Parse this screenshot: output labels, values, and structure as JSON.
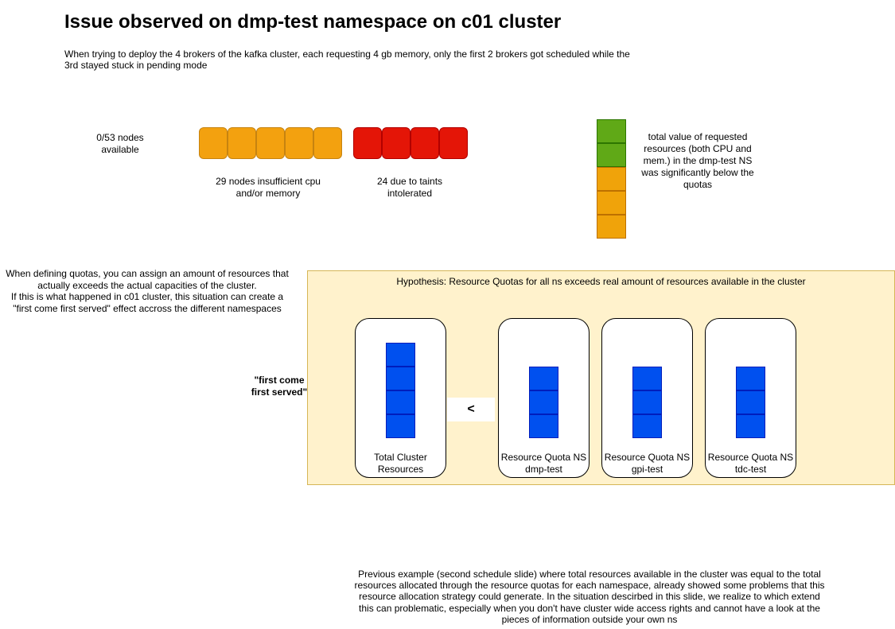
{
  "title": "Issue observed on dmp-test namespace on c01 cluster",
  "subtitle": "When trying to deploy the 4  brokers of the kafka cluster, each requesting 4 gb memory, only the first 2 brokers got scheduled while the 3rd stayed stuck in pending mode",
  "nodes": {
    "available_label": "0/53 nodes available",
    "insufficient_label": "29  nodes insufficient cpu and/or memory",
    "taints_label": "24 due to taints intolerated",
    "insufficient_count": 5,
    "taints_count": 4
  },
  "resource_stack": {
    "cells": [
      "green",
      "green",
      "orange",
      "orange",
      "orange"
    ],
    "label": "total value of requested resources (both CPU and mem.) in the dmp-test NS was significantly below the quotas"
  },
  "quota_note": "When defining quotas, you can assign an amount of resources  that actually exceeds the actual capacities of the cluster.\nIf this is what happened in c01 cluster, this situation can create a \"first come first served\" effect  accross the different namespaces",
  "hypothesis": {
    "title": "Hypothesis: Resource Quotas for all ns exceeds real amount of resources available in the cluster",
    "fcfs_label": "\"first come first served\"",
    "comparator": "<",
    "cards": [
      {
        "label": "Total Cluster Resources",
        "blocks": 4
      },
      {
        "label": "Resource Quota NS dmp-test",
        "blocks": 3
      },
      {
        "label": "Resource Quota NS gpi-test",
        "blocks": 3
      },
      {
        "label": "Resource Quota NS tdc-test",
        "blocks": 3
      }
    ]
  },
  "footer_note": "Previous example (second schedule slide) where total resources available in the cluster was equal to the total resources allocated through the resource quotas for each namespace, already showed some problems that this resource allocation strategy could generate. In the situation descirbed in this slide, we realize to which extend this can problematic, especially when you don't have cluster wide access rights and cannot have a look at the pieces of information outside your own ns",
  "colors": {
    "orange": "#f3a10f",
    "red": "#e41507",
    "green": "#60a917",
    "blue": "#0050ef",
    "hypothesis_bg": "#fff2cc"
  }
}
